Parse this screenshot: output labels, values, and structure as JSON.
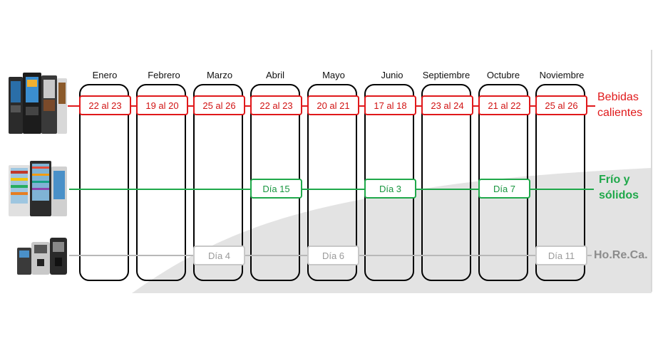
{
  "months": [
    "Enero",
    "Febrero",
    "Marzo",
    "Abril",
    "Mayo",
    "Junio",
    "Septiembre",
    "Octubre",
    "Noviembre"
  ],
  "rows": {
    "hot": {
      "label_line1": "Bebidas",
      "label_line2": "calientes",
      "color": "#e0191b",
      "dates": [
        "22 al 23",
        "19 al 20",
        "25 al 26",
        "22 al 23",
        "20 al 21",
        "17 al 18",
        "23 al 24",
        "21 al 22",
        "25 al 26"
      ]
    },
    "cold": {
      "label_line1": "Frío y",
      "label_line2": "sólidos",
      "color": "#1fa84a",
      "dates": {
        "abril": "Día 15",
        "junio": "Día 3",
        "octubre": "Día 7"
      }
    },
    "horeca": {
      "label": "Ho.Re.Ca.",
      "color": "#b8b8b8",
      "dates": {
        "marzo": "Día 4",
        "mayo": "Día 6",
        "noviembre": "Día 11"
      }
    }
  },
  "icons": {
    "hot_row": "hot-drink-vending-machines-icon",
    "cold_row": "snack-vending-machines-icon",
    "horeca_row": "coffee-machines-icon"
  }
}
